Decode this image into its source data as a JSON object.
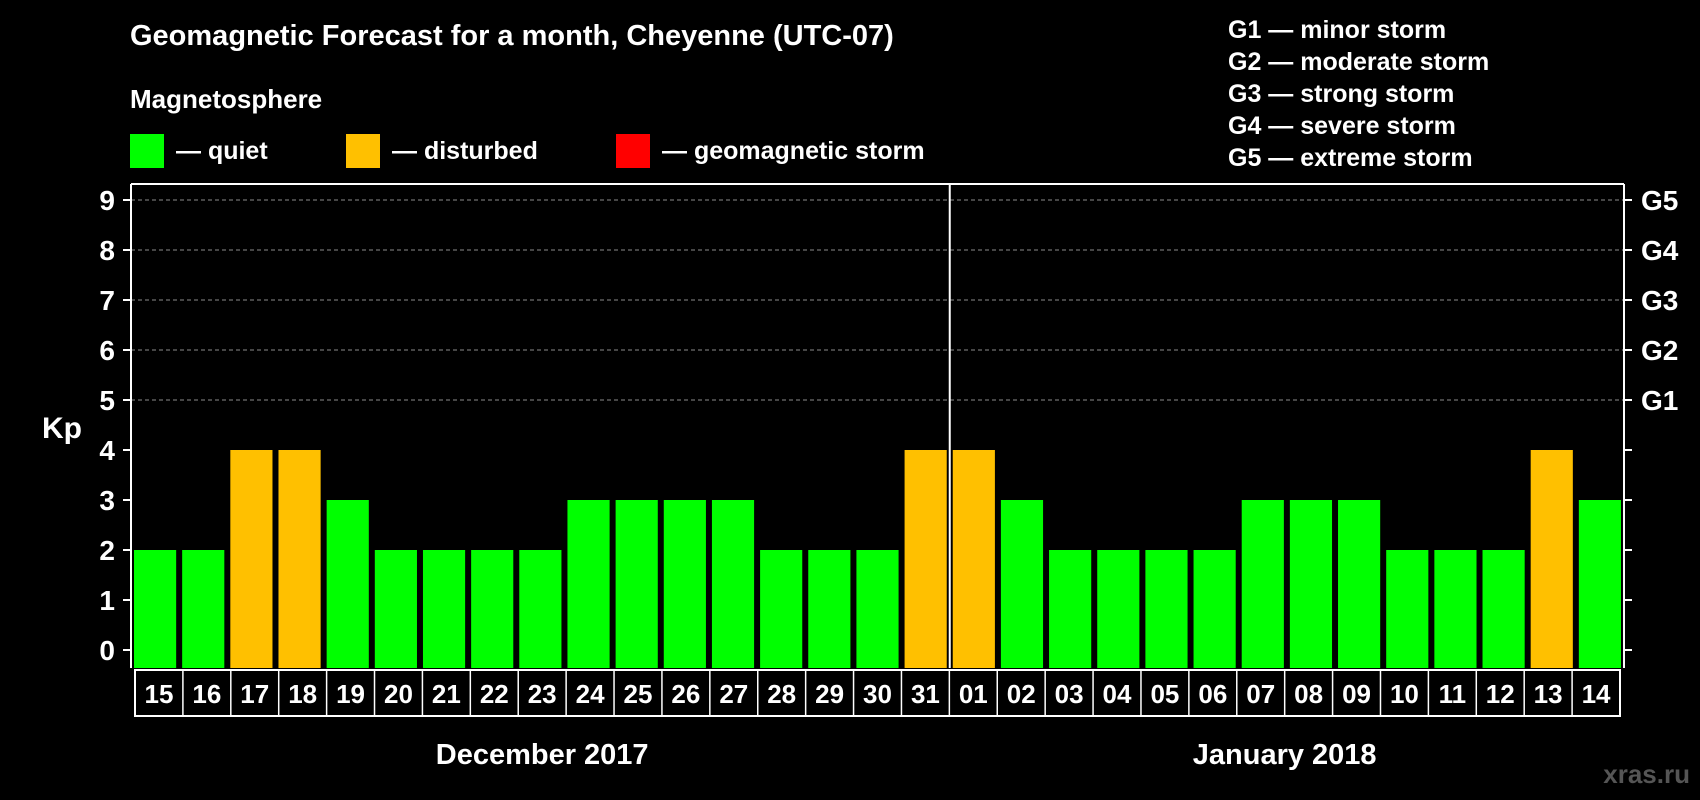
{
  "header": {
    "title": "Geomagnetic Forecast for a month, Cheyenne (UTC-07)",
    "subtitle": "Magnetosphere"
  },
  "legend": [
    {
      "label": "— quiet",
      "color": "#00ff00"
    },
    {
      "label": "— disturbed",
      "color": "#ffc000"
    },
    {
      "label": "— geomagnetic storm",
      "color": "#ff0000"
    }
  ],
  "storm_scale": [
    "G1 — minor storm",
    "G2 — moderate storm",
    "G3 — strong storm",
    "G4 — severe storm",
    "G5 — extreme storm"
  ],
  "watermark": "xras.ru",
  "chart_data": {
    "type": "bar",
    "title": "Geomagnetic Forecast for a month, Cheyenne (UTC-07)",
    "ylabel": "Kp",
    "ylim": [
      0,
      9
    ],
    "yticks": [
      0,
      1,
      2,
      3,
      4,
      5,
      6,
      7,
      8,
      9
    ],
    "grid": true,
    "right_axis_labels": [
      {
        "kp": 5,
        "label": "G1"
      },
      {
        "kp": 6,
        "label": "G2"
      },
      {
        "kp": 7,
        "label": "G3"
      },
      {
        "kp": 8,
        "label": "G4"
      },
      {
        "kp": 9,
        "label": "G5"
      }
    ],
    "categories": [
      "15",
      "16",
      "17",
      "18",
      "19",
      "20",
      "21",
      "22",
      "23",
      "24",
      "25",
      "26",
      "27",
      "28",
      "29",
      "30",
      "31",
      "01",
      "02",
      "03",
      "04",
      "05",
      "06",
      "07",
      "08",
      "09",
      "10",
      "11",
      "12",
      "13",
      "14"
    ],
    "values": [
      2,
      2,
      4,
      4,
      3,
      2,
      2,
      2,
      2,
      3,
      3,
      3,
      3,
      2,
      2,
      2,
      4,
      4,
      3,
      2,
      2,
      2,
      2,
      3,
      3,
      3,
      2,
      2,
      2,
      4,
      3
    ],
    "status": [
      "quiet",
      "quiet",
      "disturbed",
      "disturbed",
      "quiet",
      "quiet",
      "quiet",
      "quiet",
      "quiet",
      "quiet",
      "quiet",
      "quiet",
      "quiet",
      "quiet",
      "quiet",
      "quiet",
      "disturbed",
      "disturbed",
      "quiet",
      "quiet",
      "quiet",
      "quiet",
      "quiet",
      "quiet",
      "quiet",
      "quiet",
      "quiet",
      "quiet",
      "quiet",
      "disturbed",
      "quiet"
    ],
    "colors": {
      "quiet": "#00ff00",
      "disturbed": "#ffc000",
      "storm": "#ff0000"
    },
    "months": [
      {
        "label": "December 2017",
        "first_index": 0,
        "last_index": 16
      },
      {
        "label": "January 2018",
        "first_index": 17,
        "last_index": 30
      }
    ]
  }
}
